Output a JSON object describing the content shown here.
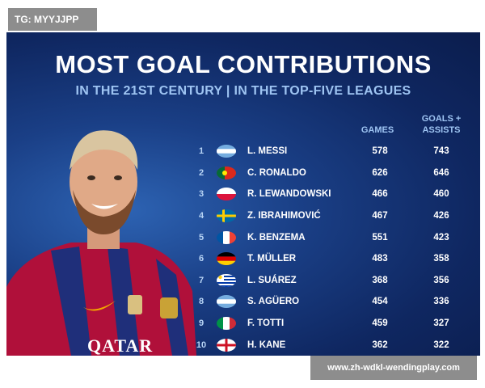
{
  "watermark_top": "TG: MYYJJPP",
  "watermark_bottom": "www.zh-wdkl-wendingplay.com",
  "title": "MOST GOAL CONTRIBUTIONS",
  "subtitle": "IN THE 21ST CENTURY | IN THE TOP-FIVE LEAGUES",
  "columns": {
    "games": "GAMES",
    "ga_line1": "GOALS +",
    "ga_line2": "ASSISTS"
  },
  "jersey_text": "QATAR",
  "rows": [
    {
      "rank": "1",
      "name": "L. MESSI",
      "games": "578",
      "ga": "743",
      "flag": "argentina-flag-icon"
    },
    {
      "rank": "2",
      "name": "C. RONALDO",
      "games": "626",
      "ga": "646",
      "flag": "portugal-flag-icon"
    },
    {
      "rank": "3",
      "name": "R. LEWANDOWSKI",
      "games": "466",
      "ga": "460",
      "flag": "poland-flag-icon"
    },
    {
      "rank": "4",
      "name": "Z. IBRAHIMOVIĆ",
      "games": "467",
      "ga": "426",
      "flag": "sweden-flag-icon"
    },
    {
      "rank": "5",
      "name": "K. BENZEMA",
      "games": "551",
      "ga": "423",
      "flag": "france-flag-icon"
    },
    {
      "rank": "6",
      "name": "T. MÜLLER",
      "games": "483",
      "ga": "358",
      "flag": "germany-flag-icon"
    },
    {
      "rank": "7",
      "name": "L. SUÁREZ",
      "games": "368",
      "ga": "356",
      "flag": "uruguay-flag-icon"
    },
    {
      "rank": "8",
      "name": "S. AGÜERO",
      "games": "454",
      "ga": "336",
      "flag": "argentina-flag-icon"
    },
    {
      "rank": "9",
      "name": "F. TOTTI",
      "games": "459",
      "ga": "327",
      "flag": "italy-flag-icon"
    },
    {
      "rank": "10",
      "name": "H. KANE",
      "games": "362",
      "ga": "322",
      "flag": "england-flag-icon"
    }
  ]
}
